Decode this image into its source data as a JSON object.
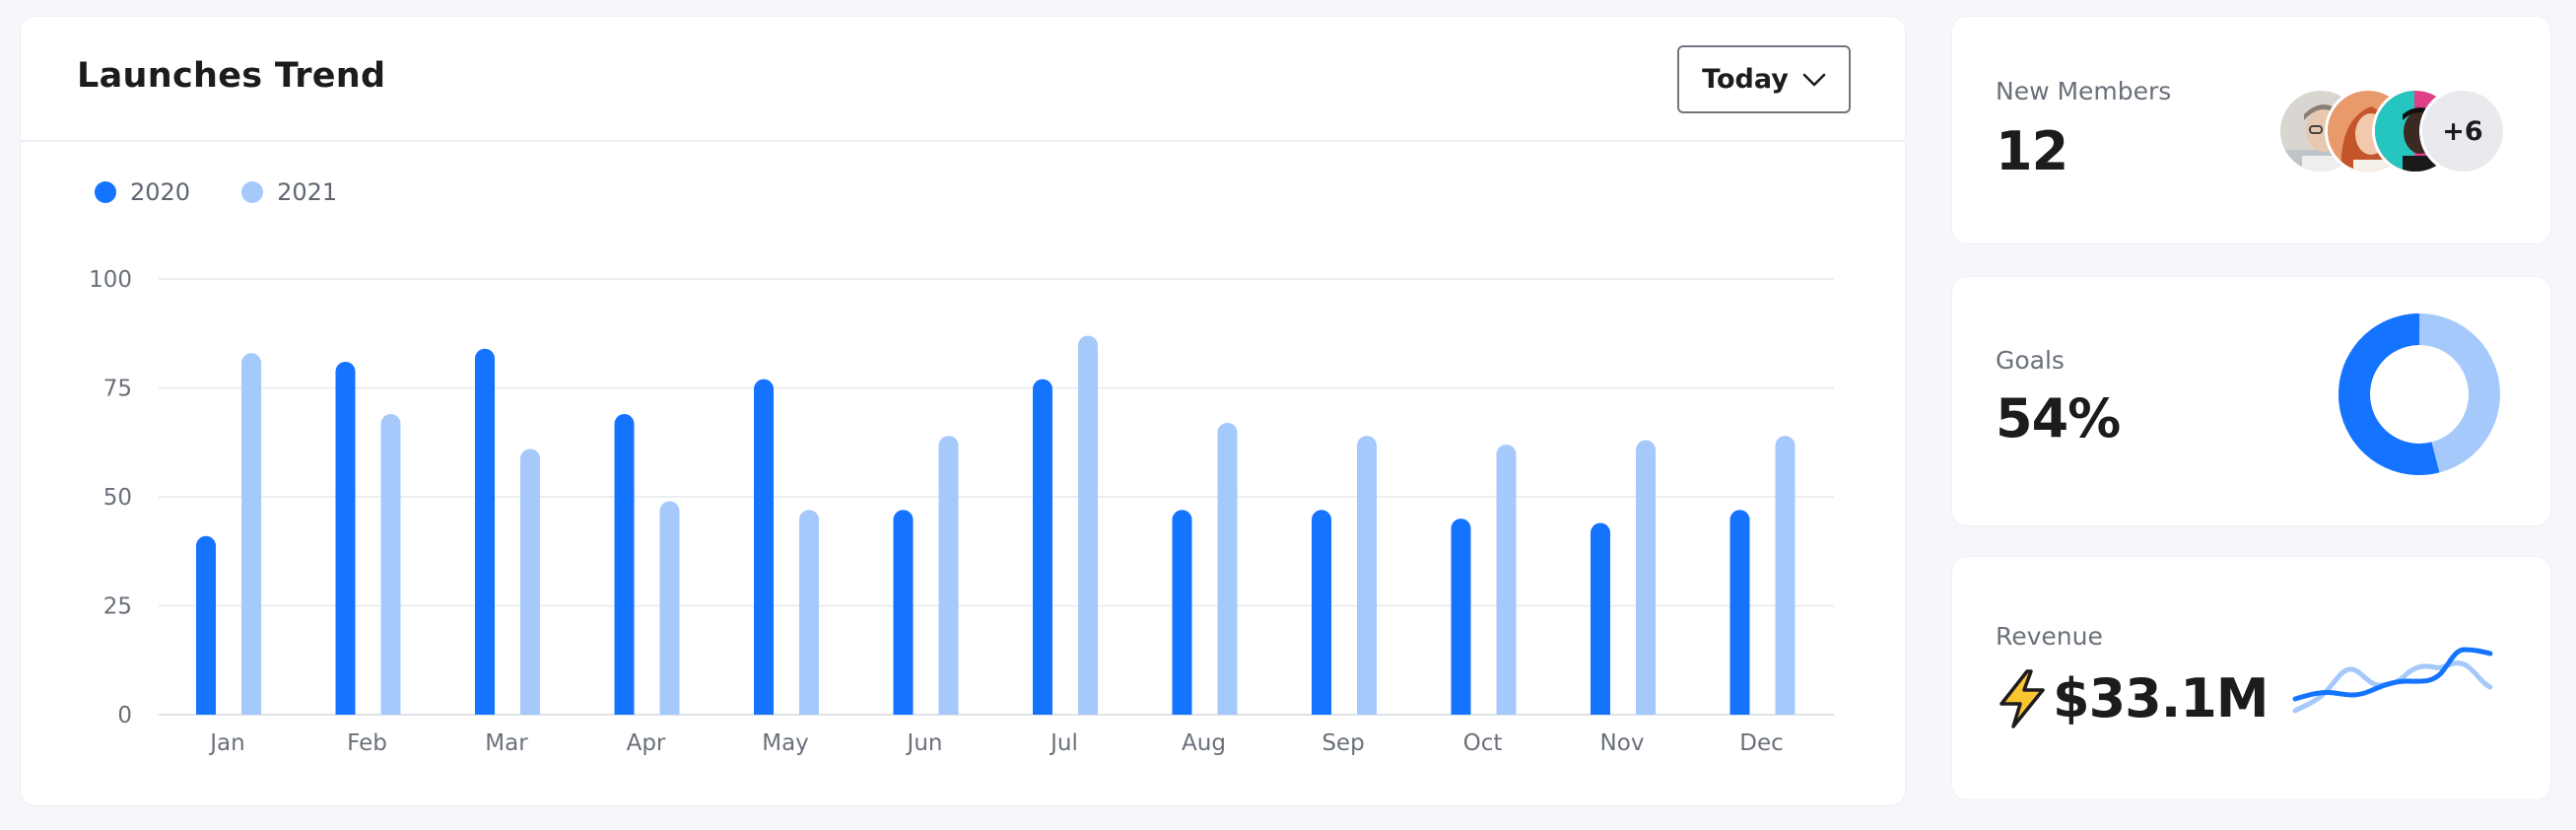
{
  "trend": {
    "title": "Launches Trend",
    "period": "Today",
    "legend": [
      {
        "label": "2020",
        "color": "#1473ff"
      },
      {
        "label": "2021",
        "color": "#a6c9fb"
      }
    ]
  },
  "chart_data": {
    "type": "bar",
    "title": "Launches Trend",
    "xlabel": "",
    "ylabel": "",
    "ylim": [
      0,
      100
    ],
    "yticks": [
      0,
      25,
      50,
      75,
      100
    ],
    "grid": true,
    "legend_position": "top-left",
    "categories": [
      "Jan",
      "Feb",
      "Mar",
      "Apr",
      "May",
      "Jun",
      "Jul",
      "Aug",
      "Sep",
      "Oct",
      "Nov",
      "Dec"
    ],
    "series": [
      {
        "name": "2020",
        "color": "#1473ff",
        "values": [
          41,
          81,
          84,
          69,
          77,
          47,
          77,
          47,
          47,
          45,
          44,
          47
        ]
      },
      {
        "name": "2021",
        "color": "#a6c9fb",
        "values": [
          83,
          69,
          61,
          49,
          47,
          64,
          87,
          67,
          64,
          62,
          63,
          64
        ]
      }
    ]
  },
  "members": {
    "label": "New Members",
    "value": "12",
    "more": "+6"
  },
  "goals": {
    "label": "Goals",
    "value": "54%",
    "percent": 54,
    "colors": {
      "primary": "#1473ff",
      "secondary": "#a6c9fb"
    }
  },
  "revenue": {
    "label": "Revenue",
    "value": "$33.1M",
    "icon": "lightning-bolt-icon"
  }
}
